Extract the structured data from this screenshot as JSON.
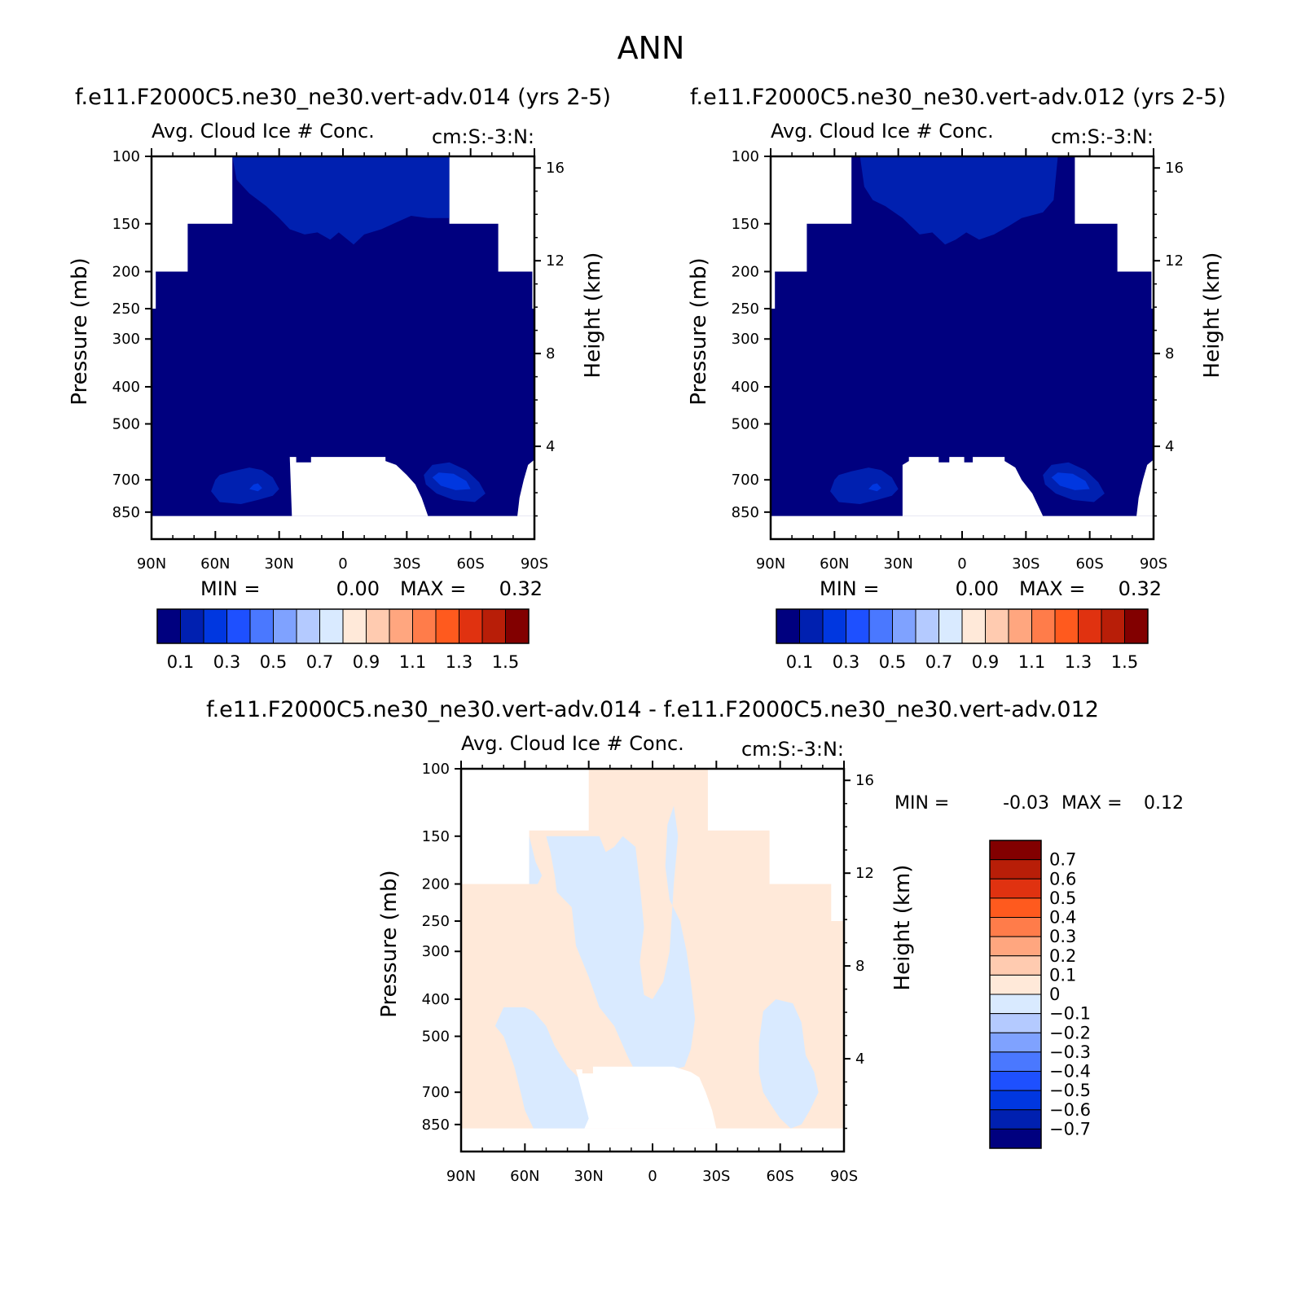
{
  "page_title": "ANN",
  "chart_data": [
    {
      "type": "contour",
      "title": "f.e11.F2000C5.ne30_ne30.vert-adv.014 (yrs 2-5)",
      "subtitle_left": "Avg. Cloud Ice # Conc.",
      "subtitle_right": "cm:S:-3:N:",
      "ylabel": "Pressure (mb)",
      "ylabel_right": "Height (km)",
      "y_ticks": [
        "100",
        "150",
        "200",
        "250",
        "300",
        "400",
        "500",
        "700",
        "850"
      ],
      "y_right_ticks": [
        "16",
        "12",
        "8",
        "4"
      ],
      "x_ticks": [
        "90N",
        "60N",
        "30N",
        "0",
        "30S",
        "60S",
        "90S"
      ],
      "ylim": [
        100,
        1000
      ],
      "xlim": [
        90,
        -90
      ],
      "stats": {
        "min_label": "MIN =",
        "min": "0.00",
        "max_label": "MAX =",
        "max": "0.32"
      },
      "colorbar": {
        "orientation": "horizontal",
        "labels": [
          "0.1",
          "0.3",
          "0.5",
          "0.7",
          "0.9",
          "1.1",
          "1.3",
          "1.5"
        ],
        "colors": [
          "#00007f",
          "#0020b0",
          "#0037e0",
          "#1e50ff",
          "#4a78ff",
          "#7fa2ff",
          "#b4caff",
          "#d9eaff",
          "#ffe9d9",
          "#ffcbb0",
          "#ffa67f",
          "#ff7c4a",
          "#ff5a1e",
          "#e03210",
          "#b81e08",
          "#820000"
        ]
      }
    },
    {
      "type": "contour",
      "title": "f.e11.F2000C5.ne30_ne30.vert-adv.012 (yrs 2-5)",
      "subtitle_left": "Avg. Cloud Ice # Conc.",
      "subtitle_right": "cm:S:-3:N:",
      "ylabel": "Pressure (mb)",
      "ylabel_right": "Height (km)",
      "y_ticks": [
        "100",
        "150",
        "200",
        "250",
        "300",
        "400",
        "500",
        "700",
        "850"
      ],
      "y_right_ticks": [
        "16",
        "12",
        "8",
        "4"
      ],
      "x_ticks": [
        "90N",
        "60N",
        "30N",
        "0",
        "30S",
        "60S",
        "90S"
      ],
      "ylim": [
        100,
        1000
      ],
      "xlim": [
        90,
        -90
      ],
      "stats": {
        "min_label": "MIN =",
        "min": "0.00",
        "max_label": "MAX =",
        "max": "0.32"
      },
      "colorbar": {
        "orientation": "horizontal",
        "labels": [
          "0.1",
          "0.3",
          "0.5",
          "0.7",
          "0.9",
          "1.1",
          "1.3",
          "1.5"
        ],
        "colors": [
          "#00007f",
          "#0020b0",
          "#0037e0",
          "#1e50ff",
          "#4a78ff",
          "#7fa2ff",
          "#b4caff",
          "#d9eaff",
          "#ffe9d9",
          "#ffcbb0",
          "#ffa67f",
          "#ff7c4a",
          "#ff5a1e",
          "#e03210",
          "#b81e08",
          "#820000"
        ]
      }
    },
    {
      "type": "contour",
      "title": "f.e11.F2000C5.ne30_ne30.vert-adv.014 - f.e11.F2000C5.ne30_ne30.vert-adv.012",
      "subtitle_left": "Avg. Cloud Ice # Conc.",
      "subtitle_right": "cm:S:-3:N:",
      "ylabel": "Pressure (mb)",
      "ylabel_right": "Height (km)",
      "y_ticks": [
        "100",
        "150",
        "200",
        "250",
        "300",
        "400",
        "500",
        "700",
        "850"
      ],
      "y_right_ticks": [
        "16",
        "12",
        "8",
        "4"
      ],
      "x_ticks": [
        "90N",
        "60N",
        "30N",
        "0",
        "30S",
        "60S",
        "90S"
      ],
      "ylim": [
        100,
        1000
      ],
      "xlim": [
        90,
        -90
      ],
      "stats": {
        "min_label": "MIN =",
        "min": "-0.03",
        "max_label": "MAX =",
        "max": "0.12"
      },
      "colorbar": {
        "orientation": "vertical",
        "labels": [
          "0.7",
          "0.6",
          "0.5",
          "0.4",
          "0.3",
          "0.2",
          "0.1",
          "0",
          "-0.1",
          "-0.2",
          "-0.3",
          "-0.4",
          "-0.5",
          "-0.6",
          "-0.7"
        ],
        "colors": [
          "#820000",
          "#b81e08",
          "#e03210",
          "#ff5a1e",
          "#ff7c4a",
          "#ffa67f",
          "#ffcbb0",
          "#ffe9d9",
          "#d9eaff",
          "#b4caff",
          "#7fa2ff",
          "#4a78ff",
          "#1e50ff",
          "#0037e0",
          "#0020b0",
          "#00007f"
        ]
      }
    }
  ]
}
